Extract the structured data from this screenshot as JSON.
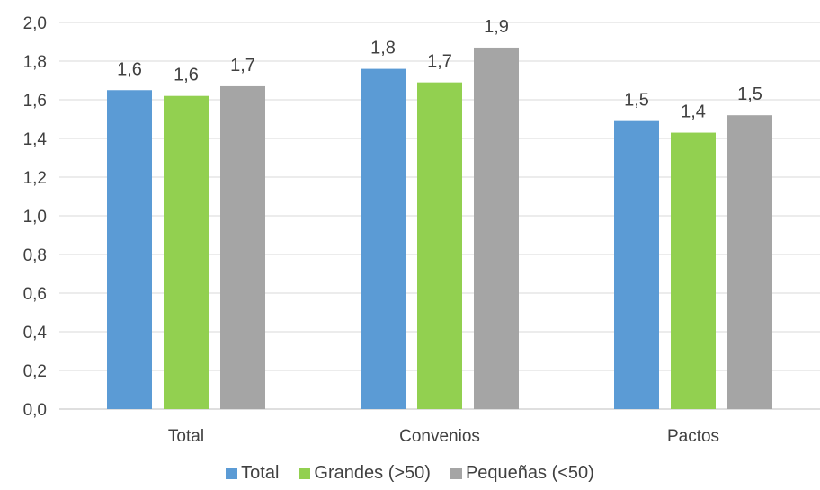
{
  "chart_data": {
    "type": "bar",
    "categories": [
      "Total",
      "Convenios",
      "Pactos"
    ],
    "series": [
      {
        "name": "Total",
        "color": "#5B9BD5",
        "values": [
          1.65,
          1.76,
          1.49
        ],
        "labels": [
          "1,6",
          "1,8",
          "1,5"
        ]
      },
      {
        "name": "Grandes (>50)",
        "color": "#92D050",
        "values": [
          1.62,
          1.69,
          1.43
        ],
        "labels": [
          "1,6",
          "1,7",
          "1,4"
        ]
      },
      {
        "name": "Pequeñas (<50)",
        "color": "#A5A5A5",
        "values": [
          1.67,
          1.87,
          1.52
        ],
        "labels": [
          "1,7",
          "1,9",
          "1,5"
        ]
      }
    ],
    "yticks": [
      "0,0",
      "0,2",
      "0,4",
      "0,6",
      "0,8",
      "1,0",
      "1,2",
      "1,4",
      "1,6",
      "1,8",
      "2,0"
    ],
    "ylim": [
      0,
      2.0
    ],
    "grid": true,
    "legend": "bottom"
  }
}
